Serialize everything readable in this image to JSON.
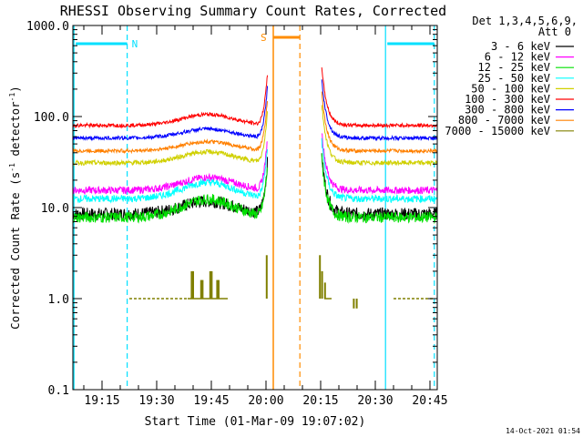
{
  "chart_data": {
    "type": "line",
    "title": "RHESSI Observing Summary Count Rates, Corrected",
    "xlabel": "Start Time (01-Mar-09 19:07:02)",
    "ylabel_main": "Corrected Count Rate (s",
    "ylabel_sup1": "-1",
    "ylabel_mid": " detector",
    "ylabel_sup2": "-1",
    "ylabel_end": ")",
    "yscale": "log",
    "ylim": [
      0.1,
      1000
    ],
    "xlim_min": [
      67,
      167
    ],
    "x_ticks": [
      {
        "min": 75,
        "label": "19:15"
      },
      {
        "min": 90,
        "label": "19:30"
      },
      {
        "min": 105,
        "label": "19:45"
      },
      {
        "min": 120,
        "label": "20:00"
      },
      {
        "min": 135,
        "label": "20:15"
      },
      {
        "min": 150,
        "label": "20:30"
      },
      {
        "min": 165,
        "label": "20:45"
      }
    ],
    "y_ticks": [
      {
        "value": 1000,
        "label": "1000.0"
      },
      {
        "value": 100,
        "label": "100.0"
      },
      {
        "value": 10,
        "label": "10.0"
      },
      {
        "value": 1,
        "label": "1.0"
      },
      {
        "value": 0.1,
        "label": "0.1"
      }
    ],
    "legend_header": [
      "Det 1,3,4,5,6,9,",
      "Att 0"
    ],
    "legend_placement": "top-right outside",
    "series": [
      {
        "name": "3 - 6 keV",
        "color": "#000000",
        "base": 8.5,
        "hump": 0.14,
        "noise": 0.07
      },
      {
        "name": "6 - 12 keV",
        "color": "#ff00ff",
        "base": 15.5,
        "hump": 0.14,
        "noise": 0.04
      },
      {
        "name": "12 - 25 keV",
        "color": "#00e000",
        "base": 7.8,
        "hump": 0.2,
        "noise": 0.06
      },
      {
        "name": "25 - 50 keV",
        "color": "#00ffff",
        "base": 12.5,
        "hump": 0.18,
        "noise": 0.04
      },
      {
        "name": "50 - 100 keV",
        "color": "#d0d000",
        "base": 31.0,
        "hump": 0.12,
        "noise": 0.025
      },
      {
        "name": "100 - 300 keV",
        "color": "#ff0000",
        "base": 80.0,
        "hump": 0.12,
        "noise": 0.02
      },
      {
        "name": "300 - 800 keV",
        "color": "#0000ff",
        "base": 58.0,
        "hump": 0.1,
        "noise": 0.02
      },
      {
        "name": "800 - 7000 keV",
        "color": "#ff8000",
        "base": 42.0,
        "hump": 0.1,
        "noise": 0.02
      },
      {
        "name": "7000 - 15000 keV",
        "color": "#808000",
        "base": 1.0,
        "hump": 0.0,
        "noise": 0.0
      }
    ],
    "segments": [
      {
        "start": 67,
        "end": 120.5
      },
      {
        "start": 135.3,
        "end": 167
      }
    ],
    "markers": [
      {
        "type": "night",
        "label": "N",
        "start": 67.3,
        "end": 81.9,
        "color": "#00e0ff"
      },
      {
        "type": "night",
        "label": "",
        "start": 152.8,
        "end": 167,
        "color": "#00e0ff"
      },
      {
        "type": "saa",
        "label": "S",
        "start": 122,
        "end": 129.3,
        "color": "#ff8c00"
      }
    ],
    "footer_date": "14-Oct-2021 01:54"
  }
}
